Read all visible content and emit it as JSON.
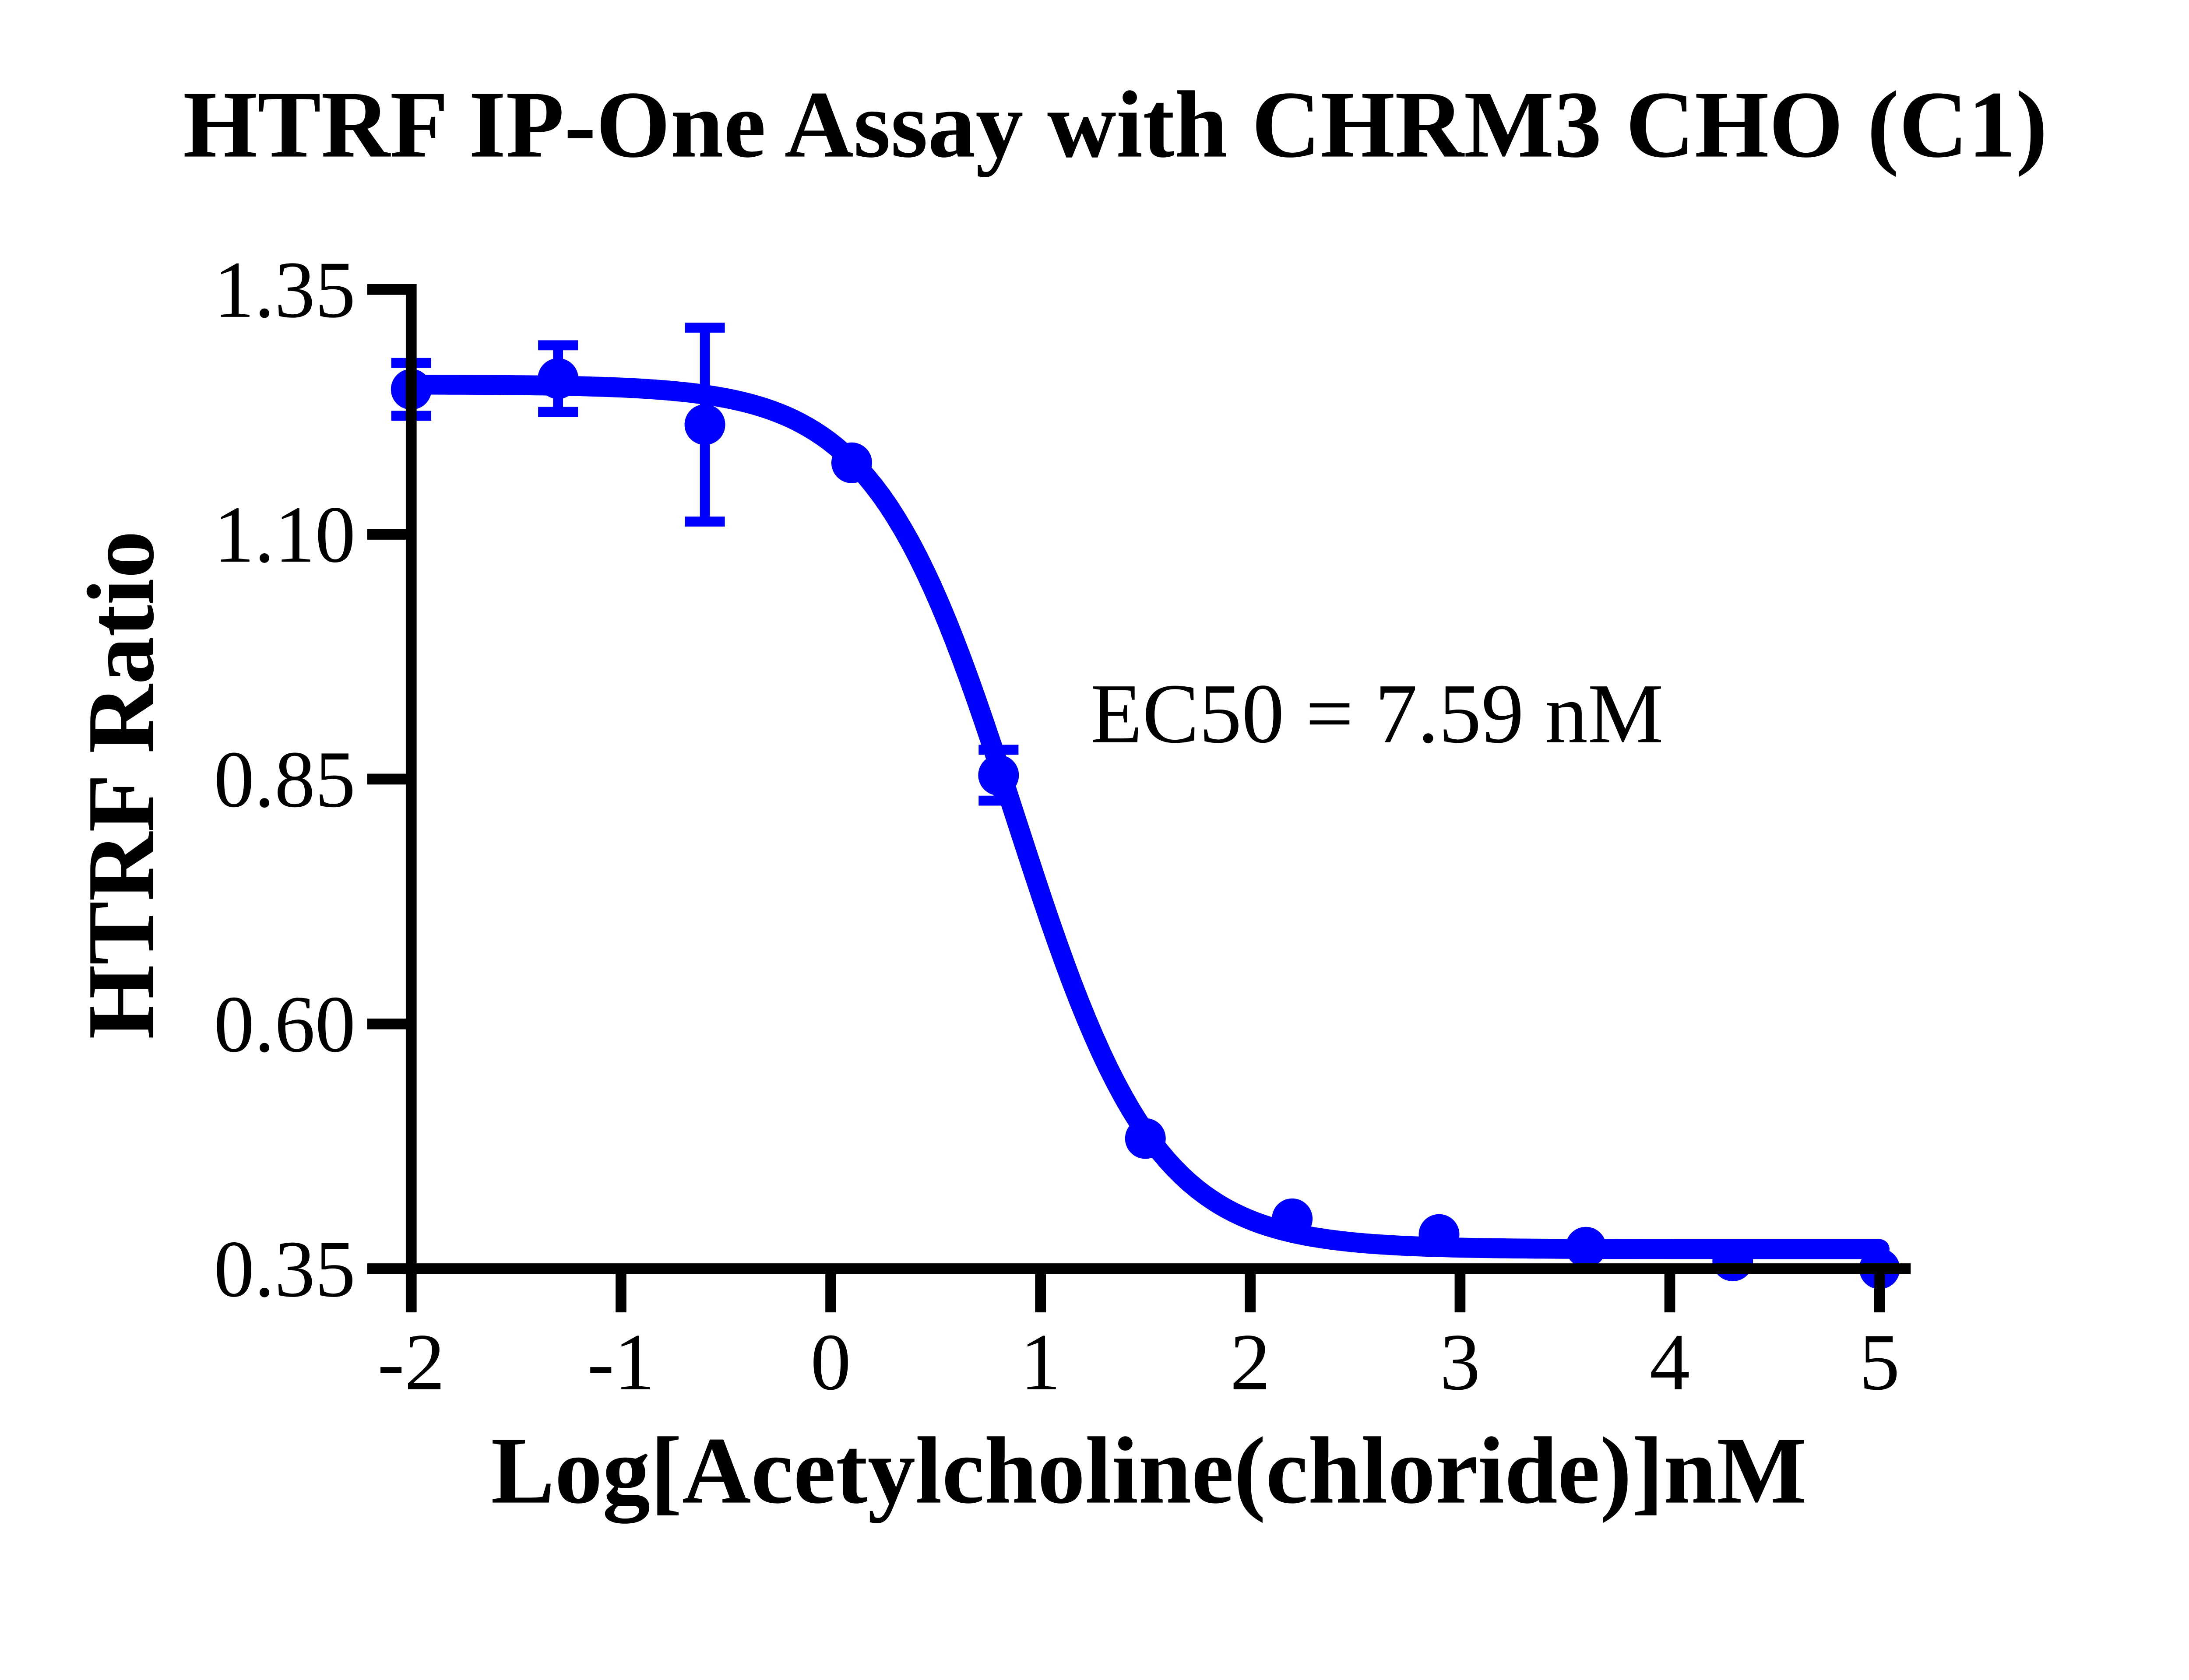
{
  "figure": {
    "background": "#ffffff",
    "axis_color": "#000000",
    "series_color": "#0000FF"
  },
  "chart_data": {
    "type": "scatter",
    "title": "HTRF IP-One Assay with CHRM3 CHO (C1)",
    "xlabel": "Log[Acetylcholine(chloride)]nM",
    "ylabel": "HTRF Ratio",
    "xlim": [
      -2,
      5
    ],
    "ylim": [
      0.35,
      1.35
    ],
    "x_ticks": [
      -2,
      -1,
      0,
      1,
      2,
      3,
      4,
      5
    ],
    "y_ticks": [
      1.35,
      1.1,
      0.85,
      0.6,
      0.35
    ],
    "grid": false,
    "legend": "none",
    "annotation": {
      "text": "EC50 = 7.59 nM"
    },
    "ec50_nM": 7.59,
    "series": [
      {
        "marker": "circle",
        "color": "#0000FF",
        "x": [
          -2.0,
          -1.3,
          -0.6,
          0.1,
          0.8,
          1.5,
          2.2,
          2.9,
          3.6,
          4.3,
          5.0
        ],
        "y": [
          1.248,
          1.259,
          1.212,
          1.173,
          0.854,
          0.483,
          0.401,
          0.385,
          0.372,
          0.358,
          0.35
        ],
        "y_err": [
          0.027,
          0.034,
          0.099,
          0,
          0.026,
          0,
          0,
          0,
          0,
          0,
          0
        ]
      }
    ],
    "fit_curve": {
      "model": "four_parameter_logistic",
      "top": 1.253,
      "bottom": 0.37,
      "log_ec50": 0.88,
      "hill_slope": 1.3,
      "color": "#0000FF"
    }
  }
}
